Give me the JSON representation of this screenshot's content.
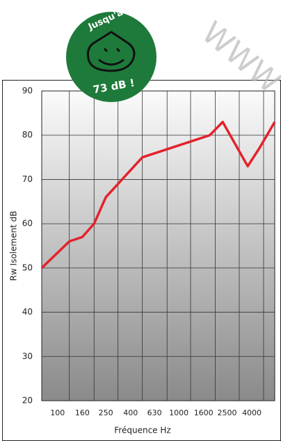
{
  "chart_data": {
    "type": "line",
    "xlabel": "Fréquence Hz",
    "ylabel": "Rw Isolement dB",
    "badge": {
      "top": "Jusqu'à",
      "bottom": "73 dB !"
    },
    "watermark": "WWW",
    "x": [
      74,
      125,
      160,
      200,
      250,
      500,
      1800,
      2300,
      3700,
      4600,
      6180
    ],
    "series": [
      {
        "name": "Rw",
        "color": "#e3222b",
        "values": [
          50,
          56,
          57,
          60,
          66,
          75,
          80,
          83,
          73,
          77,
          83
        ]
      }
    ],
    "xscale": "log",
    "xlim": [
      74,
      6180
    ],
    "xticks": [
      100,
      160,
      250,
      400,
      630,
      1000,
      1600,
      2500,
      4000
    ],
    "xgrid": [
      125,
      200,
      315,
      500,
      800,
      1250,
      2000,
      3150,
      5000
    ],
    "ylim": [
      20,
      90
    ],
    "yticks": [
      20,
      30,
      40,
      50,
      60,
      70,
      80,
      90
    ],
    "grid": true
  }
}
